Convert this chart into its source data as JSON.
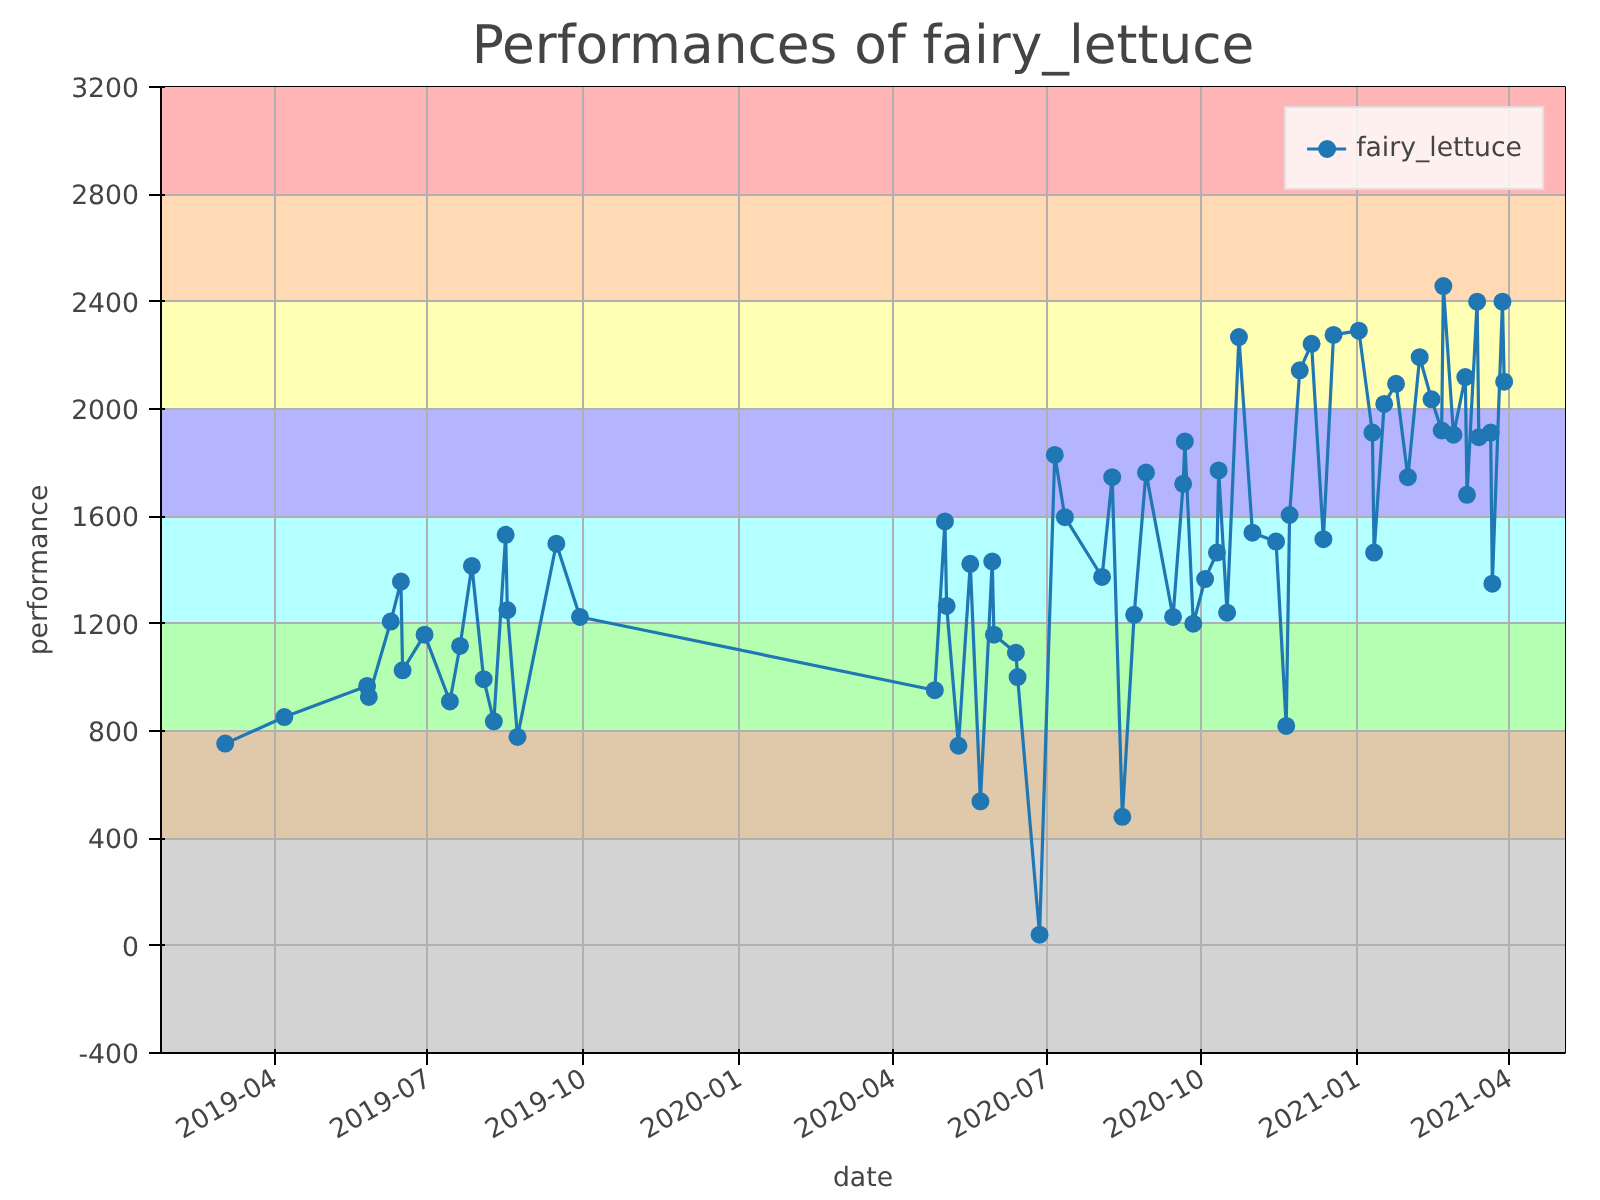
{
  "chart_data": {
    "type": "line",
    "title": "Performances of fairy_lettuce",
    "xlabel": "date",
    "ylabel": "performance",
    "x": [
      "2019-03-03",
      "2019-04-07",
      "2019-05-26",
      "2019-05-27",
      "2019-06-09",
      "2019-06-15",
      "2019-06-16",
      "2019-06-29",
      "2019-07-14",
      "2019-07-20",
      "2019-07-27",
      "2019-08-03",
      "2019-08-09",
      "2019-08-16",
      "2019-08-17",
      "2019-08-23",
      "2019-09-15",
      "2019-09-29",
      "2020-04-26",
      "2020-05-02",
      "2020-05-03",
      "2020-05-10",
      "2020-05-17",
      "2020-05-23",
      "2020-05-30",
      "2020-05-31",
      "2020-06-13",
      "2020-06-14",
      "2020-06-27",
      "2020-07-06",
      "2020-07-12",
      "2020-08-03",
      "2020-08-09",
      "2020-08-15",
      "2020-08-22",
      "2020-08-29",
      "2020-09-14",
      "2020-09-20",
      "2020-09-21",
      "2020-09-26",
      "2020-10-03",
      "2020-10-10",
      "2020-10-11",
      "2020-10-16",
      "2020-10-23",
      "2020-10-31",
      "2020-11-14",
      "2020-11-20",
      "2020-11-22",
      "2020-11-28",
      "2020-12-05",
      "2020-12-12",
      "2020-12-18",
      "2021-01-02",
      "2021-01-10",
      "2021-01-11",
      "2021-01-17",
      "2021-01-24",
      "2021-01-31",
      "2021-02-07",
      "2021-02-14",
      "2021-02-20",
      "2021-02-21",
      "2021-02-27",
      "2021-03-06",
      "2021-03-07",
      "2021-03-13",
      "2021-03-14",
      "2021-03-21",
      "2021-03-22",
      "2021-03-28",
      "2021-03-29"
    ],
    "series": [
      {
        "name": "fairy_lettuce",
        "color": "#1f77b4",
        "values": [
          753,
          852,
          968,
          927,
          1208,
          1357,
          1026,
          1159,
          910,
          1117,
          1415,
          993,
          836,
          1531,
          1250,
          778,
          1498,
          1225,
          952,
          1581,
          1266,
          745,
          1423,
          538,
          1432,
          1159,
          1092,
          1001,
          41,
          1829,
          1597,
          1374,
          1746,
          480,
          1233,
          1763,
          1225,
          1721,
          1879,
          1200,
          1366,
          1465,
          1771,
          1241,
          2268,
          1539,
          1506,
          819,
          1605,
          2144,
          2243,
          1515,
          2276,
          2292,
          1912,
          1465,
          2019,
          2094,
          1746,
          2193,
          2036,
          1920,
          2458,
          1904,
          2119,
          1680,
          2400,
          1895,
          1912,
          1349,
          2400,
          2102
        ]
      }
    ],
    "xlim": [
      "2019-01-24",
      "2021-05-04"
    ],
    "xticks": [
      "2019-04",
      "2019-07",
      "2019-10",
      "2020-01",
      "2020-04",
      "2020-07",
      "2020-10",
      "2021-01",
      "2021-04"
    ],
    "ylim": [
      -400,
      3200
    ],
    "yticks": [
      -400,
      0,
      400,
      800,
      1200,
      1600,
      2000,
      2400,
      2800,
      3200
    ],
    "bands": [
      {
        "axis": "y",
        "from": -400,
        "to": 400,
        "color": "#d3d3d3"
      },
      {
        "axis": "y",
        "from": 400,
        "to": 800,
        "color": "#e0c9aa"
      },
      {
        "axis": "y",
        "from": 800,
        "to": 1200,
        "color": "#b5ffb2"
      },
      {
        "axis": "y",
        "from": 1200,
        "to": 1600,
        "color": "#b4ffff"
      },
      {
        "axis": "y",
        "from": 1600,
        "to": 2000,
        "color": "#b5b5ff"
      },
      {
        "axis": "y",
        "from": 2000,
        "to": 2400,
        "color": "#ffffb4"
      },
      {
        "axis": "y",
        "from": 2400,
        "to": 2800,
        "color": "#ffdab4"
      },
      {
        "axis": "y",
        "from": 2800,
        "to": 3200,
        "color": "#ffb5b5"
      }
    ],
    "grid": true,
    "legend": "top right",
    "marker": "circle",
    "line_style": "solid"
  }
}
